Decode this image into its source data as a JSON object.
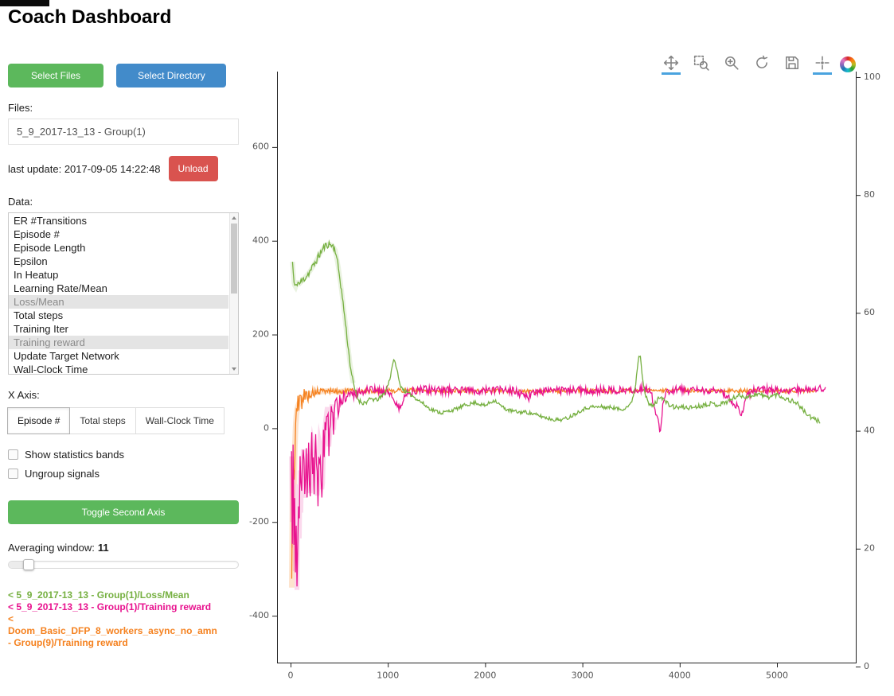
{
  "title": "Coach Dashboard",
  "sidebar": {
    "select_files_label": "Select Files",
    "select_directory_label": "Select Directory",
    "files_label": "Files:",
    "file_items": [
      "5_9_2017-13_13 - Group(1)"
    ],
    "last_update": "last update: 2017-09-05 14:22:48",
    "unload_label": "Unload",
    "data_label": "Data:",
    "data_items": [
      {
        "label": "ER #Transitions",
        "selected": false
      },
      {
        "label": "Episode #",
        "selected": false
      },
      {
        "label": "Episode Length",
        "selected": false
      },
      {
        "label": "Epsilon",
        "selected": false
      },
      {
        "label": "In Heatup",
        "selected": false
      },
      {
        "label": "Learning Rate/Mean",
        "selected": false
      },
      {
        "label": "Loss/Mean",
        "selected": true
      },
      {
        "label": "Total steps",
        "selected": false
      },
      {
        "label": "Training Iter",
        "selected": false
      },
      {
        "label": "Training reward",
        "selected": true
      },
      {
        "label": "Update Target Network",
        "selected": false
      },
      {
        "label": "Wall-Clock Time",
        "selected": false
      }
    ],
    "x_axis_label": "X Axis:",
    "x_axis_options": [
      {
        "label": "Episode #",
        "active": true
      },
      {
        "label": "Total steps",
        "active": false
      },
      {
        "label": "Wall-Clock Time",
        "active": false
      }
    ],
    "checkboxes": [
      {
        "label": "Show statistics bands",
        "checked": false
      },
      {
        "label": "Ungroup signals",
        "checked": false
      }
    ],
    "toggle_second_axis_label": "Toggle Second Axis",
    "averaging_window_label": "Averaging window:",
    "averaging_window_value": "11",
    "legend": [
      {
        "text": "< 5_9_2017-13_13 - Group(1)/Loss/Mean",
        "color": "#76b041"
      },
      {
        "text": "< 5_9_2017-13_13 - Group(1)/Training reward",
        "color": "#e8128e"
      },
      {
        "text": "< Doom_Basic_DFP_8_workers_async_no_amn - Group(9)/Training reward",
        "color": "#f58220"
      }
    ]
  },
  "toolbar": {
    "icons": [
      {
        "name": "pan-icon",
        "active": true
      },
      {
        "name": "box-zoom-icon",
        "active": false
      },
      {
        "name": "wheel-zoom-icon",
        "active": false
      },
      {
        "name": "reset-icon",
        "active": false
      },
      {
        "name": "save-icon",
        "active": false
      },
      {
        "name": "hover-icon",
        "active": true
      }
    ],
    "logo": "bokeh-logo"
  },
  "chart_data": {
    "type": "line",
    "title": "",
    "xlabel": "",
    "ylabel": "",
    "grid": false,
    "x_axis": {
      "range": [
        -139,
        5810
      ],
      "ticks": [
        0,
        1000,
        2000,
        3000,
        4000,
        5000
      ]
    },
    "y_axis_left": {
      "range": [
        -500,
        761
      ],
      "ticks": [
        -400,
        -200,
        0,
        200,
        400,
        600
      ]
    },
    "y_axis_right": {
      "range": [
        0.675,
        100.94
      ],
      "ticks": [
        0,
        20,
        40,
        60,
        80,
        100
      ]
    },
    "series": [
      {
        "name": "Doom_Basic_DFP_8_workers_async_no_amn - Group(9)/Training reward",
        "color": "#f58220",
        "seed": 5,
        "halo": {
          "until": 650,
          "width": 7,
          "alpha": 0.22
        },
        "noise": [
          [
            0,
            55
          ],
          [
            70,
            28
          ],
          [
            220,
            10
          ],
          [
            420,
            5
          ],
          [
            5500,
            4
          ]
        ],
        "points": [
          [
            12,
            -340
          ],
          [
            20,
            -150
          ],
          [
            28,
            -60
          ],
          [
            36,
            -120
          ],
          [
            45,
            -30
          ],
          [
            55,
            18
          ],
          [
            70,
            44
          ],
          [
            90,
            55
          ],
          [
            110,
            62
          ],
          [
            140,
            68
          ],
          [
            180,
            72
          ],
          [
            230,
            75
          ],
          [
            300,
            78
          ],
          [
            400,
            80
          ],
          [
            500,
            78
          ],
          [
            600,
            80
          ],
          [
            800,
            79
          ],
          [
            1000,
            80
          ],
          [
            1200,
            81
          ],
          [
            1500,
            80
          ],
          [
            2000,
            80
          ],
          [
            2500,
            79
          ],
          [
            3000,
            80
          ],
          [
            3500,
            80
          ],
          [
            4000,
            81
          ],
          [
            4500,
            80
          ],
          [
            5000,
            80
          ],
          [
            5400,
            80
          ]
        ]
      },
      {
        "name": "5_9_2017-13_13 - Group(1)/Training reward",
        "color": "#e8128e",
        "seed": 97,
        "halo": {
          "until": 450,
          "width": 6,
          "alpha": 0.16
        },
        "noise": [
          [
            0,
            85
          ],
          [
            320,
            55
          ],
          [
            430,
            18
          ],
          [
            620,
            9
          ],
          [
            5500,
            8
          ]
        ],
        "points": [
          [
            10,
            -60
          ],
          [
            18,
            -200
          ],
          [
            26,
            -90
          ],
          [
            34,
            -255
          ],
          [
            42,
            -120
          ],
          [
            50,
            -305
          ],
          [
            58,
            -180
          ],
          [
            66,
            -345
          ],
          [
            74,
            -200
          ],
          [
            82,
            -120
          ],
          [
            90,
            -235
          ],
          [
            98,
            -90
          ],
          [
            106,
            -180
          ],
          [
            114,
            -60
          ],
          [
            122,
            -140
          ],
          [
            130,
            -45
          ],
          [
            140,
            -115
          ],
          [
            150,
            -170
          ],
          [
            160,
            -60
          ],
          [
            170,
            -130
          ],
          [
            182,
            -35
          ],
          [
            194,
            -95
          ],
          [
            206,
            -160
          ],
          [
            218,
            -55
          ],
          [
            230,
            -25
          ],
          [
            242,
            -85
          ],
          [
            254,
            -35
          ],
          [
            266,
            -120
          ],
          [
            278,
            -155
          ],
          [
            290,
            -60
          ],
          [
            302,
            -20
          ],
          [
            314,
            -90
          ],
          [
            326,
            -150
          ],
          [
            338,
            -50
          ],
          [
            350,
            -10
          ],
          [
            365,
            25
          ],
          [
            380,
            48
          ],
          [
            395,
            -45
          ],
          [
            410,
            20
          ],
          [
            425,
            55
          ],
          [
            440,
            -10
          ],
          [
            455,
            40
          ],
          [
            470,
            60
          ],
          [
            490,
            32
          ],
          [
            510,
            65
          ],
          [
            530,
            48
          ],
          [
            550,
            70
          ],
          [
            575,
            62
          ],
          [
            600,
            74
          ],
          [
            650,
            70
          ],
          [
            700,
            78
          ],
          [
            750,
            80
          ],
          [
            800,
            82
          ],
          [
            900,
            80
          ],
          [
            1000,
            81
          ],
          [
            1060,
            62
          ],
          [
            1120,
            40
          ],
          [
            1160,
            62
          ],
          [
            1200,
            78
          ],
          [
            1300,
            80
          ],
          [
            1400,
            82
          ],
          [
            1500,
            80
          ],
          [
            1700,
            82
          ],
          [
            1900,
            80
          ],
          [
            2100,
            82
          ],
          [
            2300,
            80
          ],
          [
            2450,
            66
          ],
          [
            2520,
            78
          ],
          [
            2700,
            80
          ],
          [
            2900,
            82
          ],
          [
            3100,
            80
          ],
          [
            3300,
            82
          ],
          [
            3500,
            81
          ],
          [
            3600,
            85
          ],
          [
            3700,
            80
          ],
          [
            3770,
            22
          ],
          [
            3800,
            -5
          ],
          [
            3830,
            58
          ],
          [
            3860,
            80
          ],
          [
            4000,
            82
          ],
          [
            4200,
            80
          ],
          [
            4400,
            82
          ],
          [
            4600,
            46
          ],
          [
            4640,
            30
          ],
          [
            4690,
            70
          ],
          [
            4760,
            80
          ],
          [
            4900,
            82
          ],
          [
            5100,
            80
          ],
          [
            5300,
            83
          ],
          [
            5450,
            85
          ],
          [
            5500,
            85
          ]
        ]
      },
      {
        "name": "5_9_2017-13_13 - Group(1)/Loss/Mean",
        "color": "#76b041",
        "seed": 11,
        "halo": {
          "until": 650,
          "width": 6,
          "alpha": 0.16
        },
        "noise": [
          [
            0,
            6
          ],
          [
            120,
            9
          ],
          [
            520,
            7
          ],
          [
            700,
            5
          ],
          [
            1300,
            4
          ],
          [
            3400,
            4
          ],
          [
            3800,
            5
          ],
          [
            5500,
            5
          ]
        ],
        "points": [
          [
            20,
            355
          ],
          [
            35,
            310
          ],
          [
            50,
            300
          ],
          [
            70,
            312
          ],
          [
            90,
            308
          ],
          [
            120,
            315
          ],
          [
            150,
            322
          ],
          [
            190,
            332
          ],
          [
            230,
            345
          ],
          [
            270,
            360
          ],
          [
            310,
            375
          ],
          [
            350,
            388
          ],
          [
            390,
            393
          ],
          [
            430,
            390
          ],
          [
            460,
            380
          ],
          [
            490,
            345
          ],
          [
            520,
            300
          ],
          [
            550,
            250
          ],
          [
            580,
            195
          ],
          [
            610,
            140
          ],
          [
            640,
            100
          ],
          [
            670,
            75
          ],
          [
            700,
            60
          ],
          [
            740,
            54
          ],
          [
            780,
            56
          ],
          [
            830,
            63
          ],
          [
            880,
            60
          ],
          [
            930,
            66
          ],
          [
            980,
            80
          ],
          [
            1020,
            105
          ],
          [
            1055,
            145
          ],
          [
            1085,
            135
          ],
          [
            1120,
            95
          ],
          [
            1160,
            82
          ],
          [
            1200,
            75
          ],
          [
            1250,
            70
          ],
          [
            1300,
            62
          ],
          [
            1350,
            55
          ],
          [
            1400,
            46
          ],
          [
            1450,
            40
          ],
          [
            1500,
            36
          ],
          [
            1550,
            33
          ],
          [
            1600,
            35
          ],
          [
            1650,
            38
          ],
          [
            1700,
            41
          ],
          [
            1750,
            45
          ],
          [
            1800,
            50
          ],
          [
            1850,
            52
          ],
          [
            1900,
            55
          ],
          [
            1950,
            51
          ],
          [
            2000,
            48
          ],
          [
            2050,
            55
          ],
          [
            2100,
            60
          ],
          [
            2150,
            50
          ],
          [
            2200,
            42
          ],
          [
            2250,
            38
          ],
          [
            2300,
            36
          ],
          [
            2350,
            34
          ],
          [
            2400,
            35
          ],
          [
            2450,
            33
          ],
          [
            2500,
            30
          ],
          [
            2550,
            27
          ],
          [
            2600,
            24
          ],
          [
            2650,
            21
          ],
          [
            2700,
            19
          ],
          [
            2750,
            18
          ],
          [
            2800,
            19
          ],
          [
            2850,
            22
          ],
          [
            2900,
            28
          ],
          [
            2950,
            34
          ],
          [
            3000,
            40
          ],
          [
            3050,
            44
          ],
          [
            3100,
            46
          ],
          [
            3150,
            45
          ],
          [
            3200,
            46
          ],
          [
            3250,
            44
          ],
          [
            3300,
            45
          ],
          [
            3350,
            42
          ],
          [
            3400,
            40
          ],
          [
            3450,
            45
          ],
          [
            3500,
            52
          ],
          [
            3545,
            90
          ],
          [
            3575,
            150
          ],
          [
            3595,
            158
          ],
          [
            3615,
            115
          ],
          [
            3645,
            72
          ],
          [
            3680,
            52
          ],
          [
            3720,
            47
          ],
          [
            3760,
            56
          ],
          [
            3800,
            70
          ],
          [
            3840,
            60
          ],
          [
            3880,
            51
          ],
          [
            3920,
            47
          ],
          [
            3960,
            44
          ],
          [
            4000,
            45
          ],
          [
            4100,
            44
          ],
          [
            4200,
            47
          ],
          [
            4300,
            53
          ],
          [
            4400,
            50
          ],
          [
            4500,
            58
          ],
          [
            4600,
            70
          ],
          [
            4700,
            67
          ],
          [
            4800,
            74
          ],
          [
            4900,
            66
          ],
          [
            5000,
            72
          ],
          [
            5100,
            62
          ],
          [
            5200,
            55
          ],
          [
            5280,
            36
          ],
          [
            5350,
            22
          ],
          [
            5420,
            16
          ],
          [
            5450,
            15
          ]
        ]
      }
    ]
  }
}
